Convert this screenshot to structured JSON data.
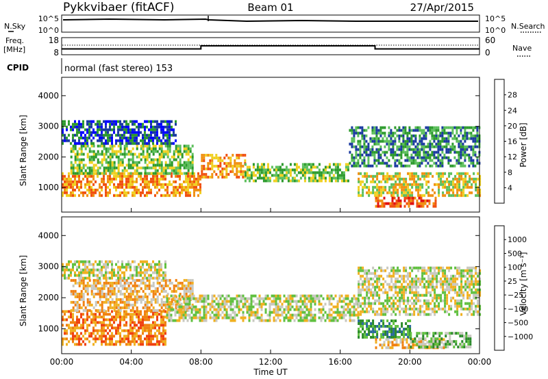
{
  "header": {
    "station": "Pykkvibaer (fitACF)",
    "beam": "Beam 01",
    "date": "27/Apr/2015"
  },
  "sky_panel": {
    "left_label": "N.Sky",
    "right_label": "N.Search",
    "ticks": [
      "10^5",
      "10^0"
    ]
  },
  "freq_panel": {
    "left_label_1": "Freq.",
    "left_label_2": "[MHz]",
    "left_ticks": [
      "18",
      "8"
    ],
    "right_label": "Nave",
    "right_ticks": [
      "60",
      "0"
    ],
    "freq_series_mhz": [
      {
        "from": "00:00",
        "to": "08:00",
        "value": 10.0
      },
      {
        "from": "08:00",
        "to": "18:00",
        "value": 12.0
      },
      {
        "from": "18:00",
        "to": "24:00",
        "value": 10.0
      }
    ]
  },
  "cpid": {
    "label": "CPID",
    "text": "normal (fast stereo) 153"
  },
  "chart_data": [
    {
      "type": "heatmap",
      "name": "power",
      "ylabel": "Slant Range [km]",
      "xlabel": "",
      "ylim": [
        200,
        4600
      ],
      "yticks": [
        "1000",
        "2000",
        "3000",
        "4000"
      ],
      "xlim": [
        "00:00",
        "24:00"
      ],
      "colorbar_label": "Power [dB]",
      "colorbar_ticks": [
        "28",
        "24",
        "20",
        "16",
        "12",
        "8",
        "4"
      ],
      "colors": [
        "#0000ff",
        "#1a3aa0",
        "#2c9a2c",
        "#5cbf5c",
        "#f0d020",
        "#f09010",
        "#f05010",
        "#e01010"
      ],
      "bands": [
        {
          "t0": 0.0,
          "t1": 8.0,
          "r0": 700,
          "r1": 1500,
          "level": 5
        },
        {
          "t0": 0.5,
          "t1": 7.5,
          "r0": 1500,
          "r1": 2400,
          "level": 3
        },
        {
          "t0": 0.0,
          "t1": 6.5,
          "r0": 2400,
          "r1": 3200,
          "level": 1
        },
        {
          "t0": 8.0,
          "t1": 10.5,
          "r0": 1300,
          "r1": 2100,
          "level": 5
        },
        {
          "t0": 10.5,
          "t1": 16.5,
          "r0": 1200,
          "r1": 1800,
          "level": 3
        },
        {
          "t0": 16.5,
          "t1": 24.0,
          "r0": 1700,
          "r1": 3000,
          "level": 2
        },
        {
          "t0": 17.0,
          "t1": 24.0,
          "r0": 700,
          "r1": 1500,
          "level": 4
        },
        {
          "t0": 18.0,
          "t1": 21.5,
          "r0": 350,
          "r1": 700,
          "level": 6
        }
      ]
    },
    {
      "type": "heatmap",
      "name": "velocity",
      "ylabel": "Slant Range [km]",
      "xlabel": "Time UT",
      "ylim": [
        200,
        4600
      ],
      "yticks": [
        "1000",
        "2000",
        "3000",
        "4000"
      ],
      "xticks": [
        "00:00",
        "04:00",
        "08:00",
        "12:00",
        "16:00",
        "20:00",
        "00:00"
      ],
      "xlim": [
        "00:00",
        "24:00"
      ],
      "colorbar_label": "Velocity [m s⁻¹]",
      "colorbar_ticks": [
        "1000",
        "500",
        "100",
        "25",
        "−25",
        "−100",
        "−500",
        "−1000"
      ],
      "colors": [
        "#1a3ad0",
        "#2a6a9a",
        "#2a8a2a",
        "#60c040",
        "#c8c8c0",
        "#f0b020",
        "#f08010",
        "#f04010",
        "#e00010"
      ],
      "bands": [
        {
          "t0": 0.0,
          "t1": 6.0,
          "r0": 500,
          "r1": 1600,
          "level": 6
        },
        {
          "t0": 0.5,
          "t1": 7.5,
          "r0": 1600,
          "r1": 2600,
          "level": 5
        },
        {
          "t0": 0.0,
          "t1": 6.0,
          "r0": 2600,
          "r1": 3200,
          "level": 4
        },
        {
          "t0": 6.0,
          "t1": 17.0,
          "r0": 1300,
          "r1": 2100,
          "level": 4
        },
        {
          "t0": 17.0,
          "t1": 24.0,
          "r0": 1500,
          "r1": 3000,
          "level": 4
        },
        {
          "t0": 17.0,
          "t1": 20.0,
          "r0": 700,
          "r1": 1300,
          "level": 2
        },
        {
          "t0": 18.0,
          "t1": 22.0,
          "r0": 350,
          "r1": 700,
          "level": 5
        },
        {
          "t0": 20.0,
          "t1": 23.5,
          "r0": 400,
          "r1": 900,
          "level": 3
        }
      ]
    }
  ]
}
